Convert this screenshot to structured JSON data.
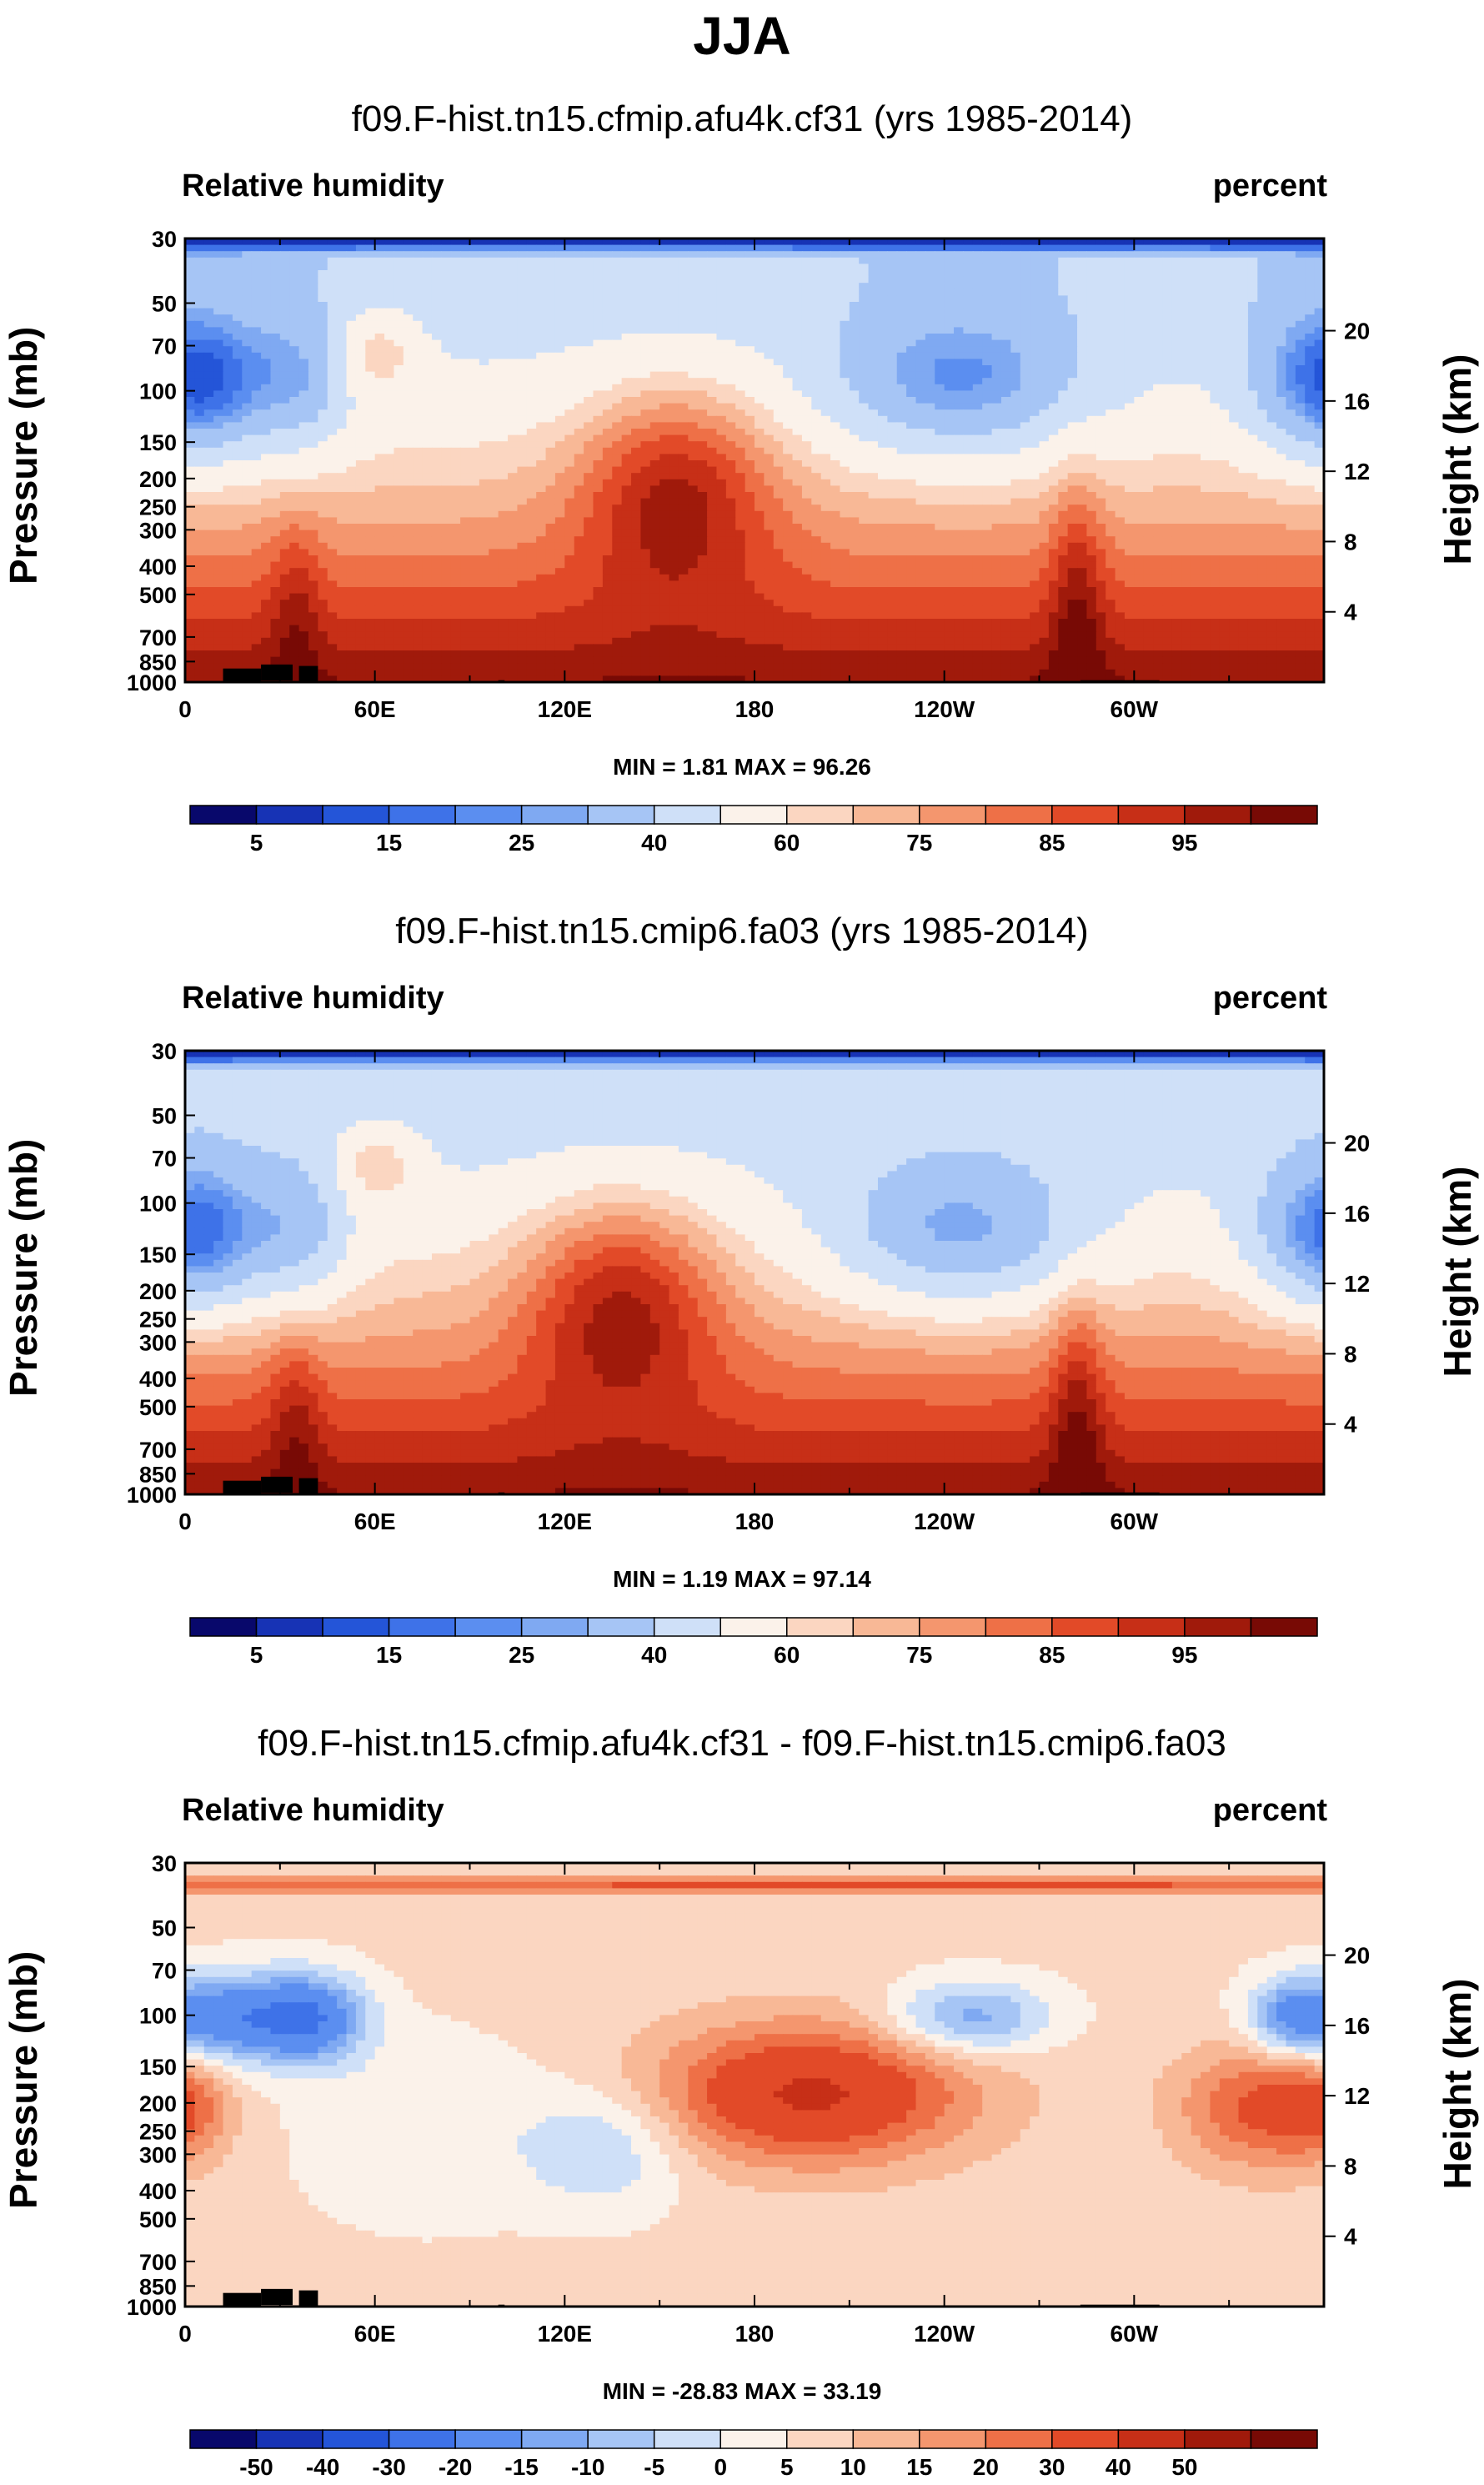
{
  "figure": {
    "title": "JJA"
  },
  "chart_data": [
    {
      "type": "heatmap",
      "title": "f09.F-hist.tn15.cfmip.afu4k.cf31 (yrs 1985-2014)",
      "variable": "Relative humidity",
      "units": "percent",
      "ylabel": "Pressure (mb)",
      "ylabel_right": "Height (km)",
      "x_ticks": [
        "0",
        "60E",
        "120E",
        "180",
        "120W",
        "60W"
      ],
      "y_ticks": [
        "30",
        "50",
        "70",
        "100",
        "150",
        "200",
        "250",
        "300",
        "400",
        "500",
        "700",
        "850",
        "1000"
      ],
      "height_ticks": [
        "20",
        "16",
        "12",
        "8",
        "4"
      ],
      "min_max": "MIN =   1.81  MAX =  96.26",
      "colorbar_levels": [
        "5",
        "15",
        "25",
        "40",
        "60",
        "75",
        "85",
        "95"
      ],
      "colors": [
        "#08086b",
        "#1733b5",
        "#2455d8",
        "#3e72e8",
        "#5b8ef0",
        "#7fa9f2",
        "#a6c5f5",
        "#cfe0f8",
        "#fbf2ea",
        "#fbd6c1",
        "#f8b896",
        "#f4966e",
        "#ee7047",
        "#e24a28",
        "#c72f17",
        "#a01a0b",
        "#780a05"
      ]
    },
    {
      "type": "heatmap",
      "title": "f09.F-hist.tn15.cmip6.fa03 (yrs 1985-2014)",
      "variable": "Relative humidity",
      "units": "percent",
      "ylabel": "Pressure (mb)",
      "ylabel_right": "Height (km)",
      "x_ticks": [
        "0",
        "60E",
        "120E",
        "180",
        "120W",
        "60W"
      ],
      "y_ticks": [
        "30",
        "50",
        "70",
        "100",
        "150",
        "200",
        "250",
        "300",
        "400",
        "500",
        "700",
        "850",
        "1000"
      ],
      "height_ticks": [
        "20",
        "16",
        "12",
        "8",
        "4"
      ],
      "min_max": "MIN =   1.19  MAX =  97.14",
      "colorbar_levels": [
        "5",
        "15",
        "25",
        "40",
        "60",
        "75",
        "85",
        "95"
      ],
      "colors": [
        "#08086b",
        "#1733b5",
        "#2455d8",
        "#3e72e8",
        "#5b8ef0",
        "#7fa9f2",
        "#a6c5f5",
        "#cfe0f8",
        "#fbf2ea",
        "#fbd6c1",
        "#f8b896",
        "#f4966e",
        "#ee7047",
        "#e24a28",
        "#c72f17",
        "#a01a0b",
        "#780a05"
      ]
    },
    {
      "type": "heatmap",
      "title": "f09.F-hist.tn15.cfmip.afu4k.cf31 - f09.F-hist.tn15.cmip6.fa03",
      "variable": "Relative humidity",
      "units": "percent",
      "ylabel": "Pressure (mb)",
      "ylabel_right": "Height (km)",
      "x_ticks": [
        "0",
        "60E",
        "120E",
        "180",
        "120W",
        "60W"
      ],
      "y_ticks": [
        "30",
        "50",
        "70",
        "100",
        "150",
        "200",
        "250",
        "300",
        "400",
        "500",
        "700",
        "850",
        "1000"
      ],
      "height_ticks": [
        "20",
        "16",
        "12",
        "8",
        "4"
      ],
      "min_max": "MIN = -28.83  MAX =  33.19",
      "colorbar_levels": [
        "-50",
        "-40",
        "-30",
        "-20",
        "-15",
        "-10",
        "-5",
        "0",
        "5",
        "10",
        "15",
        "20",
        "30",
        "40",
        "50"
      ],
      "colors": [
        "#08086b",
        "#1733b5",
        "#2455d8",
        "#3e72e8",
        "#5b8ef0",
        "#7fa9f2",
        "#a6c5f5",
        "#cfe0f8",
        "#fbf2ea",
        "#fbd6c1",
        "#f8b896",
        "#f4966e",
        "#ee7047",
        "#e24a28",
        "#c72f17",
        "#a01a0b",
        "#780a05"
      ]
    }
  ]
}
